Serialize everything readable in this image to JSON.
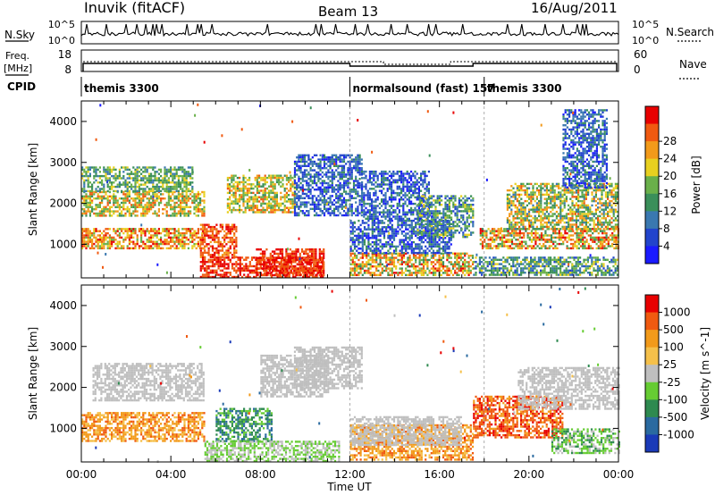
{
  "header": {
    "station": "Inuvik (fitACF)",
    "beam": "Beam 13",
    "date": "16/Aug/2011"
  },
  "status_panels": {
    "nsky_label": "N.Sky",
    "nsearch_label": "N.Search",
    "freq_label_1": "Freq.",
    "freq_label_2": "[MHz]",
    "nave_label": "Nave",
    "cpid_label": "CPID",
    "nsky_ticks": [
      "10^5",
      "10^0"
    ],
    "nsearch_ticks": [
      "10^5",
      "10^0"
    ],
    "freq_ticks": [
      "18",
      "8"
    ],
    "nave_ticks": [
      "60",
      "0"
    ]
  },
  "cpid_segments": [
    {
      "label": "themis 3300",
      "start_hour": 0
    },
    {
      "label": "normalsound (fast) 157",
      "start_hour": 12
    },
    {
      "label": "themis 3300",
      "start_hour": 18
    }
  ],
  "chart_data": [
    {
      "type": "heatmap",
      "name": "power",
      "ylabel": "Slant Range [km]",
      "xlabel": "Time UT",
      "x_ticks": [
        "00:00",
        "04:00",
        "08:00",
        "12:00",
        "16:00",
        "20:00",
        "00:00"
      ],
      "x_range_hours": [
        0,
        24
      ],
      "y_ticks": [
        1000,
        2000,
        3000,
        4000
      ],
      "ylim": [
        180,
        4500
      ],
      "colorbar": {
        "label": "Power [dB]",
        "ticks": [
          "4",
          "8",
          "12",
          "16",
          "20",
          "24",
          "28"
        ],
        "colors": [
          "#1a1aff",
          "#2244cc",
          "#3a78b0",
          "#3a8f5a",
          "#6ab04a",
          "#e8d020",
          "#f29a1a",
          "#f05a10",
          "#e80000"
        ]
      },
      "regions": [
        {
          "t": [
            0.0,
            5.5
          ],
          "r": [
            900,
            1400
          ],
          "level": [
            4,
            8
          ]
        },
        {
          "t": [
            0.0,
            5.5
          ],
          "r": [
            1700,
            2300
          ],
          "level": [
            3,
            7
          ]
        },
        {
          "t": [
            0.0,
            5.0
          ],
          "r": [
            2300,
            2900
          ],
          "level": [
            2,
            5
          ]
        },
        {
          "t": [
            5.3,
            6.9
          ],
          "r": [
            700,
            1500
          ],
          "level": [
            6,
            8
          ]
        },
        {
          "t": [
            5.3,
            10.8
          ],
          "r": [
            200,
            700
          ],
          "level": [
            7,
            8
          ]
        },
        {
          "t": [
            7.8,
            10.8
          ],
          "r": [
            250,
            900
          ],
          "level": [
            7,
            8
          ]
        },
        {
          "t": [
            6.5,
            9.5
          ],
          "r": [
            1800,
            2700
          ],
          "level": [
            3,
            7
          ]
        },
        {
          "t": [
            9.5,
            12.5
          ],
          "r": [
            1700,
            3200
          ],
          "level": [
            0,
            3
          ]
        },
        {
          "t": [
            12.0,
            17.5
          ],
          "r": [
            250,
            800
          ],
          "level": [
            3,
            8
          ]
        },
        {
          "t": [
            12.0,
            16.5
          ],
          "r": [
            800,
            1600
          ],
          "level": [
            0,
            3
          ]
        },
        {
          "t": [
            12.5,
            15.5
          ],
          "r": [
            1600,
            2800
          ],
          "level": [
            0,
            3
          ]
        },
        {
          "t": [
            15.0,
            17.5
          ],
          "r": [
            1200,
            2200
          ],
          "level": [
            1,
            5
          ]
        },
        {
          "t": [
            17.5,
            24.0
          ],
          "r": [
            250,
            700
          ],
          "level": [
            1,
            5
          ]
        },
        {
          "t": [
            17.8,
            24.0
          ],
          "r": [
            900,
            1400
          ],
          "level": [
            3,
            8
          ]
        },
        {
          "t": [
            19.0,
            24.0
          ],
          "r": [
            1400,
            2500
          ],
          "level": [
            2,
            7
          ]
        },
        {
          "t": [
            21.5,
            23.5
          ],
          "r": [
            2400,
            4300
          ],
          "level": [
            0,
            3
          ]
        }
      ]
    },
    {
      "type": "heatmap",
      "name": "velocity",
      "ylabel": "Slant Range [km]",
      "xlabel": "Time UT",
      "x_ticks": [
        "00:00",
        "04:00",
        "08:00",
        "12:00",
        "16:00",
        "20:00",
        "00:00"
      ],
      "x_range_hours": [
        0,
        24
      ],
      "y_ticks": [
        1000,
        2000,
        3000,
        4000
      ],
      "ylim": [
        180,
        4500
      ],
      "colorbar": {
        "label": "Velocity [m s^-1]",
        "ticks": [
          "1000",
          "500",
          "100",
          "25",
          "-25",
          "-100",
          "-500",
          "-1000"
        ],
        "colors": [
          "#1a3ab8",
          "#2a6aa0",
          "#2e8a50",
          "#66cc33",
          "#bfbfbf",
          "#f5c04a",
          "#f29a1a",
          "#f05a10",
          "#e80000"
        ]
      },
      "regions": [
        {
          "t": [
            0.0,
            5.5
          ],
          "r": [
            700,
            1400
          ],
          "level": [
            5,
            7
          ]
        },
        {
          "t": [
            0.5,
            5.5
          ],
          "r": [
            1700,
            2600
          ],
          "level": [
            4,
            4
          ]
        },
        {
          "t": [
            6.0,
            8.5
          ],
          "r": [
            700,
            1500
          ],
          "level": [
            1,
            3
          ]
        },
        {
          "t": [
            5.5,
            11.5
          ],
          "r": [
            200,
            700
          ],
          "level": [
            3,
            4
          ]
        },
        {
          "t": [
            8.0,
            11.0
          ],
          "r": [
            1800,
            2800
          ],
          "level": [
            4,
            4
          ]
        },
        {
          "t": [
            9.5,
            12.5
          ],
          "r": [
            2000,
            3000
          ],
          "level": [
            4,
            4
          ]
        },
        {
          "t": [
            12.0,
            17.5
          ],
          "r": [
            250,
            1100
          ],
          "level": [
            5,
            7
          ]
        },
        {
          "t": [
            12.0,
            17.0
          ],
          "r": [
            600,
            1300
          ],
          "level": [
            4,
            4
          ]
        },
        {
          "t": [
            17.5,
            21.5
          ],
          "r": [
            800,
            1800
          ],
          "level": [
            6,
            8
          ]
        },
        {
          "t": [
            19.5,
            24.0
          ],
          "r": [
            1500,
            2500
          ],
          "level": [
            4,
            4
          ]
        },
        {
          "t": [
            21.0,
            24.0
          ],
          "r": [
            400,
            1000
          ],
          "level": [
            2,
            4
          ]
        }
      ]
    }
  ]
}
